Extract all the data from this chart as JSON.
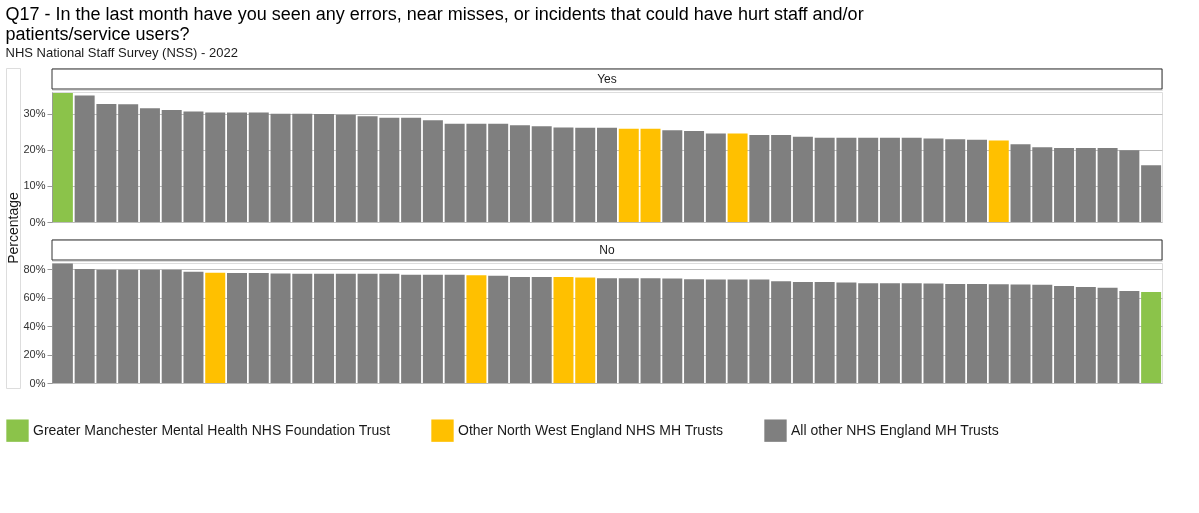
{
  "chart_data": [
    {
      "type": "bar",
      "title": "Q17 - In the last month have you seen any errors, near misses, or incidents that could have hurt staff and/or patients/service users?",
      "subtitle": "NHS National Staff Survey (NSS) - 2022",
      "ylabel": "Percentage",
      "annotations": [
        "Yes"
      ],
      "grid": "y",
      "legend": "bottom",
      "tick_labels": "y",
      "categories": [
        null,
        null,
        null,
        null,
        null,
        null,
        null,
        null,
        null,
        null,
        null,
        null,
        null,
        null,
        null,
        null,
        null,
        null,
        null,
        null,
        null,
        null,
        null,
        null,
        null,
        null,
        null,
        null,
        null,
        null,
        null,
        null,
        null,
        null,
        null,
        null,
        null,
        null,
        null,
        null,
        null,
        null,
        null,
        null,
        null,
        null,
        null,
        null,
        null,
        null,
        null
      ],
      "ylim": [
        0,
        36
      ],
      "yticks": [
        {
          "value": 0,
          "label": "0%"
        },
        {
          "value": 10,
          "label": "10%"
        },
        {
          "value": 20,
          "label": "20%"
        },
        {
          "value": 30,
          "label": "30%"
        }
      ],
      "series": [
        {
          "name": "Greater Manchester Mental Health NHS Foundation Trust",
          "color": "#8bc34a",
          "values": [
            35.7,
            null,
            null,
            null,
            null,
            null,
            null,
            null,
            null,
            null,
            null,
            null,
            null,
            null,
            null,
            null,
            null,
            null,
            null,
            null,
            null,
            null,
            null,
            null,
            null,
            null,
            null,
            null,
            null,
            null,
            null,
            null,
            null,
            null,
            null,
            null,
            null,
            null,
            null,
            null,
            null,
            null,
            null,
            null,
            null,
            null,
            null,
            null,
            null,
            null,
            null
          ]
        },
        {
          "name": "Other North West England NHS MH Trusts",
          "color": "#ffc000",
          "values": [
            null,
            null,
            null,
            null,
            null,
            null,
            null,
            null,
            null,
            null,
            null,
            null,
            null,
            null,
            null,
            null,
            null,
            null,
            null,
            null,
            null,
            null,
            null,
            null,
            null,
            null,
            25.8,
            25.8,
            null,
            null,
            null,
            24.5,
            null,
            null,
            null,
            null,
            null,
            null,
            null,
            null,
            null,
            null,
            null,
            22.6,
            null,
            null,
            null,
            null,
            null,
            null,
            null
          ]
        },
        {
          "name": "All other NHS England MH Trusts",
          "color": "#7f7f7f",
          "values": [
            null,
            35.0,
            32.7,
            32.6,
            31.5,
            31.0,
            30.6,
            30.3,
            30.3,
            30.3,
            30.0,
            30.0,
            29.9,
            29.7,
            29.3,
            28.9,
            28.9,
            28.2,
            27.2,
            27.2,
            27.2,
            26.8,
            26.5,
            26.2,
            26.1,
            26.1,
            null,
            null,
            25.4,
            25.2,
            24.5,
            null,
            24.1,
            24.1,
            23.6,
            23.3,
            23.3,
            23.3,
            23.3,
            23.3,
            23.1,
            22.9,
            22.8,
            null,
            21.5,
            20.7,
            20.5,
            20.5,
            20.5,
            19.9,
            15.7
          ]
        }
      ]
    },
    {
      "type": "bar",
      "annotations": [
        "No"
      ],
      "grid": "y",
      "legend": "bottom",
      "tick_labels": "y",
      "categories": [
        null,
        null,
        null,
        null,
        null,
        null,
        null,
        null,
        null,
        null,
        null,
        null,
        null,
        null,
        null,
        null,
        null,
        null,
        null,
        null,
        null,
        null,
        null,
        null,
        null,
        null,
        null,
        null,
        null,
        null,
        null,
        null,
        null,
        null,
        null,
        null,
        null,
        null,
        null,
        null,
        null,
        null,
        null,
        null,
        null,
        null,
        null,
        null,
        null,
        null,
        null
      ],
      "ylim": [
        0,
        84.5
      ],
      "yticks": [
        {
          "value": 0,
          "label": "0%"
        },
        {
          "value": 20,
          "label": "20%"
        },
        {
          "value": 40,
          "label": "40%"
        },
        {
          "value": 60,
          "label": "60%"
        },
        {
          "value": 80,
          "label": "80%"
        }
      ],
      "series": [
        {
          "name": "Greater Manchester Mental Health NHS Foundation Trust",
          "color": "#8bc34a",
          "values": [
            null,
            null,
            null,
            null,
            null,
            null,
            null,
            null,
            null,
            null,
            null,
            null,
            null,
            null,
            null,
            null,
            null,
            null,
            null,
            null,
            null,
            null,
            null,
            null,
            null,
            null,
            null,
            null,
            null,
            null,
            null,
            null,
            null,
            null,
            null,
            null,
            null,
            null,
            null,
            null,
            null,
            null,
            null,
            null,
            null,
            null,
            null,
            null,
            null,
            null,
            64.1
          ]
        },
        {
          "name": "Other North West England NHS MH Trusts",
          "color": "#ffc000",
          "values": [
            null,
            null,
            null,
            null,
            null,
            null,
            null,
            77.6,
            null,
            null,
            null,
            null,
            null,
            null,
            null,
            null,
            null,
            null,
            null,
            75.8,
            null,
            null,
            null,
            74.6,
            74.3,
            null,
            null,
            null,
            null,
            null,
            null,
            null,
            null,
            null,
            null,
            null,
            null,
            null,
            null,
            null,
            null,
            null,
            null,
            null,
            null,
            null,
            null,
            null,
            null,
            null,
            null
          ]
        },
        {
          "name": "All other NHS England MH Trusts",
          "color": "#7f7f7f",
          "values": [
            84.1,
            80.2,
            79.7,
            79.7,
            79.7,
            79.7,
            78.4,
            null,
            77.4,
            77.4,
            77.1,
            76.9,
            76.9,
            76.9,
            76.9,
            76.9,
            76.3,
            76.3,
            76.3,
            null,
            75.6,
            74.6,
            74.6,
            null,
            null,
            73.8,
            73.8,
            73.8,
            73.6,
            73.1,
            72.8,
            72.8,
            72.8,
            71.6,
            71.1,
            71.1,
            70.8,
            70.3,
            70.3,
            70.3,
            70.1,
            69.8,
            69.8,
            69.6,
            69.3,
            69.1,
            68.3,
            67.6,
            67.1,
            64.8,
            null
          ]
        }
      ]
    }
  ]
}
